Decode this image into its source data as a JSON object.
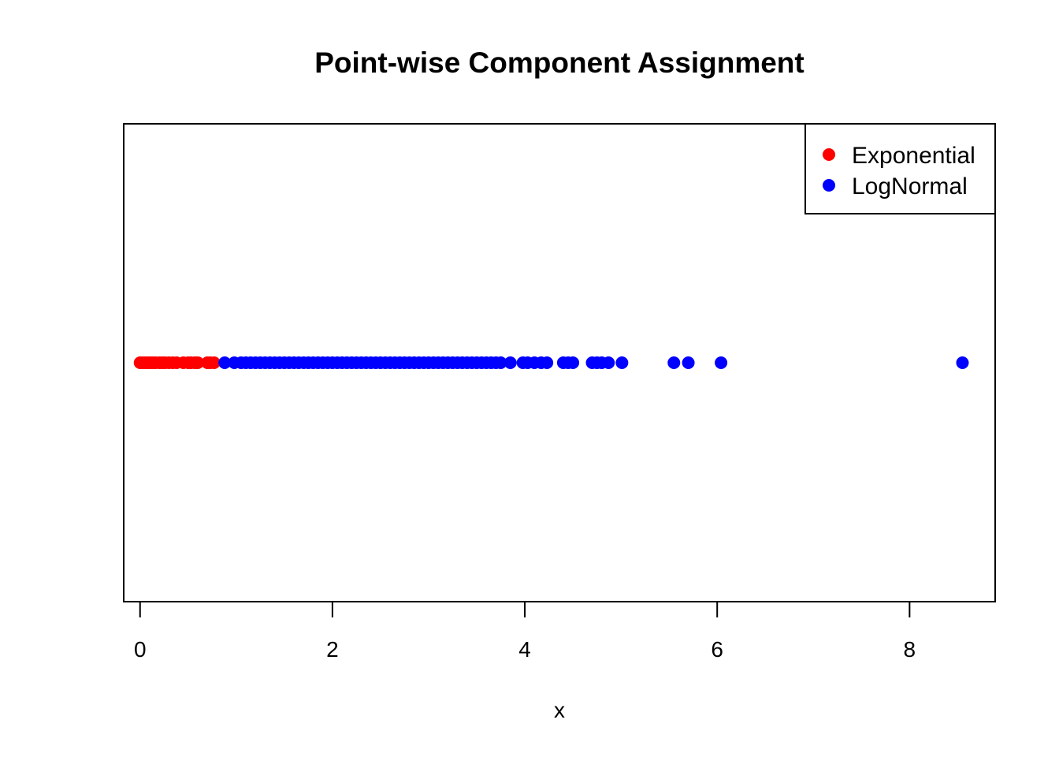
{
  "chart_data": {
    "type": "scatter",
    "title": "Point-wise Component Assignment",
    "xlabel": "x",
    "ylabel": "",
    "xlim": [
      -0.17,
      8.89
    ],
    "x_ticks": [
      0,
      2,
      4,
      6,
      8
    ],
    "x_tick_labels": [
      "0",
      "2",
      "4",
      "6",
      "8"
    ],
    "grid": false,
    "legend_position": "top-right",
    "colors": {
      "Exponential": "#ff0000",
      "LogNormal": "#0000ff",
      "axis": "#000000",
      "background": "#ffffff"
    },
    "series": [
      {
        "name": "Exponential",
        "color": "#ff0000",
        "marker": "filled-circle",
        "x": [
          0.0,
          0.02,
          0.05,
          0.08,
          0.1,
          0.13,
          0.16,
          0.2,
          0.23,
          0.26,
          0.3,
          0.34,
          0.38,
          0.45,
          0.5,
          0.53,
          0.57,
          0.6,
          0.7,
          0.73,
          0.77
        ]
      },
      {
        "name": "LogNormal",
        "color": "#0000ff",
        "marker": "filled-circle",
        "x": [
          0.88,
          0.98,
          1.05,
          1.1,
          1.15,
          1.2,
          1.25,
          1.3,
          1.35,
          1.4,
          1.45,
          1.5,
          1.55,
          1.6,
          1.65,
          1.7,
          1.75,
          1.8,
          1.85,
          1.9,
          1.95,
          2.0,
          2.05,
          2.1,
          2.15,
          2.2,
          2.25,
          2.3,
          2.35,
          2.4,
          2.45,
          2.5,
          2.55,
          2.6,
          2.65,
          2.7,
          2.75,
          2.8,
          2.85,
          2.9,
          2.95,
          3.0,
          3.05,
          3.1,
          3.15,
          3.2,
          3.25,
          3.3,
          3.35,
          3.4,
          3.45,
          3.5,
          3.55,
          3.6,
          3.65,
          3.7,
          3.75,
          3.85,
          3.98,
          4.03,
          4.1,
          4.17,
          4.23,
          4.4,
          4.45,
          4.5,
          4.7,
          4.75,
          4.8,
          4.87,
          5.01,
          5.55,
          5.7,
          6.04,
          8.55
        ]
      }
    ]
  }
}
